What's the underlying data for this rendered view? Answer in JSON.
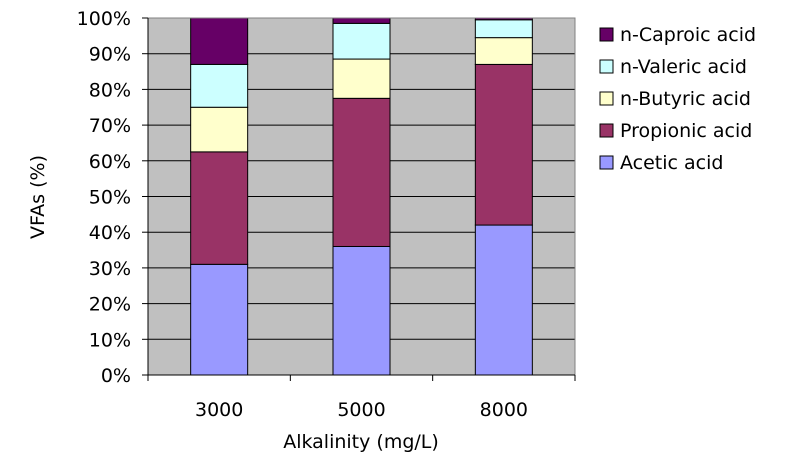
{
  "chart_data": {
    "type": "bar",
    "stacked": "percent",
    "categories": [
      "3000",
      "5000",
      "8000"
    ],
    "xlabel": "Alkalinity (mg/L)",
    "ylabel": "VFAs (%)",
    "ylim": [
      0,
      100
    ],
    "yticks": [
      "0%",
      "10%",
      "20%",
      "30%",
      "40%",
      "50%",
      "60%",
      "70%",
      "80%",
      "90%",
      "100%"
    ],
    "grid": true,
    "legend_position": "right",
    "plot_background": "#c0c0c0",
    "series": [
      {
        "name": "Acetic acid",
        "color": "#9999ff",
        "values": [
          31,
          36,
          42
        ]
      },
      {
        "name": "Propionic acid",
        "color": "#993366",
        "values": [
          31.5,
          41.5,
          45
        ]
      },
      {
        "name": "n-Butyric acid",
        "color": "#ffffcc",
        "values": [
          12.5,
          11,
          7.5
        ]
      },
      {
        "name": "n-Valeric acid",
        "color": "#ccffff",
        "values": [
          12,
          10,
          5
        ]
      },
      {
        "name": "n-Caproic acid",
        "color": "#660066",
        "values": [
          13,
          1.5,
          0.5
        ]
      }
    ]
  }
}
